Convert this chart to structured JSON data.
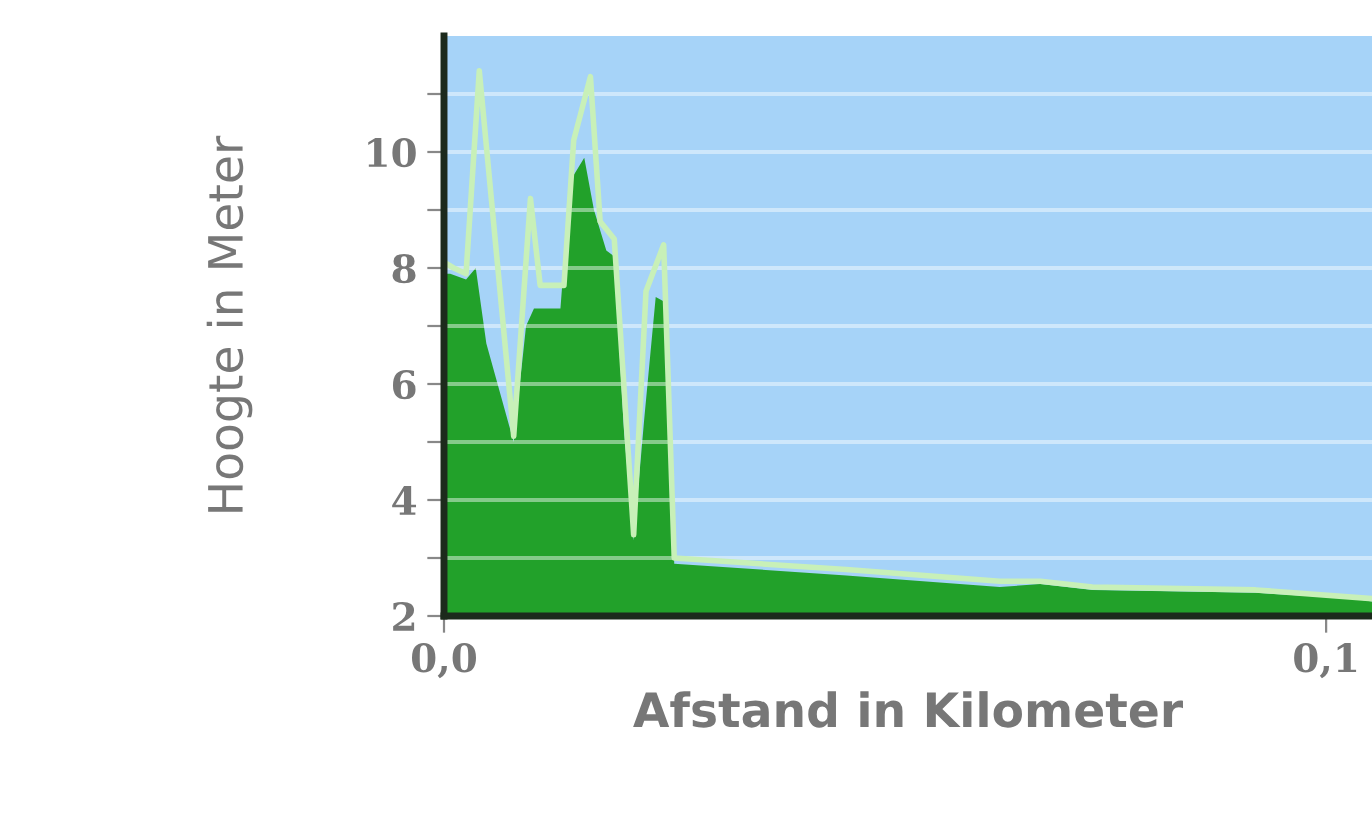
{
  "chart_data": {
    "type": "area",
    "xlabel": "Afstand in Kilometer",
    "ylabel": "Hoogte in Meter",
    "xlim": [
      0,
      0.1052
    ],
    "ylim": [
      2,
      12
    ],
    "xticks": [
      {
        "value": 0,
        "label": "0,0"
      },
      {
        "value": 0.1,
        "label": "0,1"
      }
    ],
    "yticks": [
      2,
      {
        "value": 3,
        "label": null
      },
      4,
      {
        "value": 5,
        "label": null
      },
      6,
      {
        "value": 7,
        "label": null
      },
      8,
      {
        "value": 9,
        "label": null
      },
      10,
      {
        "value": 11,
        "label": null
      }
    ],
    "grid": "y",
    "series": [
      {
        "color": "#22a12a",
        "x": [
          0,
          0.0007,
          0.0025,
          0.0036,
          0.0048,
          0.0079,
          0.0093,
          0.0102,
          0.0132,
          0.0143,
          0.0159,
          0.017,
          0.0184,
          0.0193,
          0.0204,
          0.0215,
          0.0227,
          0.024,
          0.0252,
          0.0261,
          0.0456,
          0.063,
          0.0676,
          0.0735,
          0.092,
          0.103,
          0.1052
        ],
        "values": [
          7.9,
          7.9,
          7.8,
          8.0,
          6.7,
          5.0,
          7.0,
          7.3,
          7.3,
          9.5,
          9.9,
          9.0,
          8.3,
          8.2,
          5.2,
          3.3,
          5.4,
          7.5,
          7.4,
          2.9,
          2.7,
          2.5,
          2.55,
          2.45,
          2.4,
          2.3,
          2.25
        ]
      },
      {
        "type": "line",
        "color": "#c8f0b8",
        "x": [
          0,
          0.0011,
          0.0025,
          0.004,
          0.0079,
          0.0098,
          0.0109,
          0.0136,
          0.0147,
          0.0166,
          0.0177,
          0.0193,
          0.0215,
          0.0229,
          0.0249,
          0.0261,
          0.0456,
          0.063,
          0.0676,
          0.0735,
          0.092,
          0.1052
        ],
        "values": [
          8.1,
          8.0,
          7.9,
          11.4,
          5.1,
          9.2,
          7.7,
          7.7,
          10.2,
          11.3,
          8.8,
          8.5,
          3.4,
          7.6,
          8.4,
          3.0,
          2.8,
          2.6,
          2.6,
          2.5,
          2.45,
          2.3
        ]
      }
    ]
  }
}
